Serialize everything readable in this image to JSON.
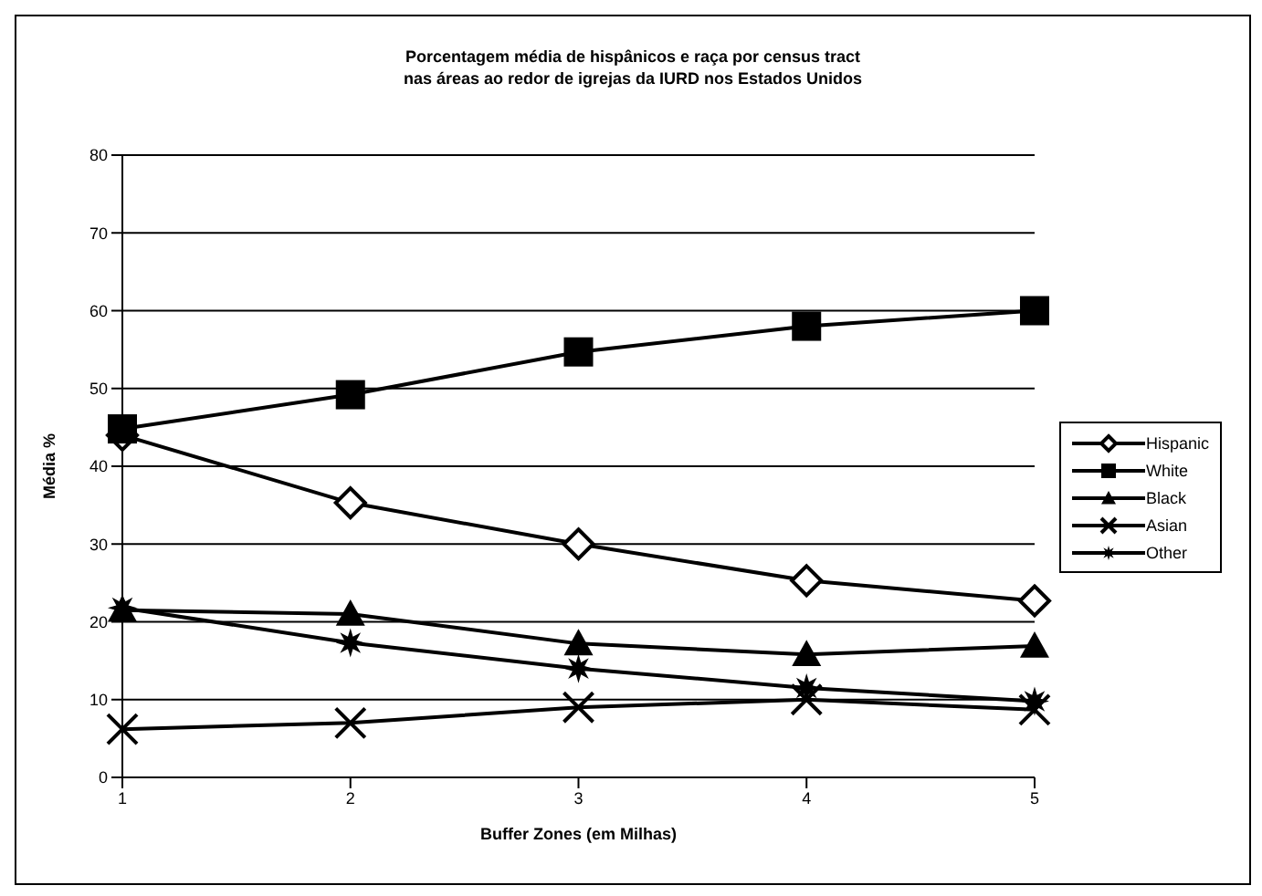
{
  "chart_data": {
    "type": "line",
    "title": "Porcentagem média de hispânicos e raça por census tract\nnas áreas ao redor de igrejas da IURD nos Estados Unidos",
    "xlabel": "Buffer Zones (em Milhas)",
    "ylabel": "Média %",
    "categories": [
      "1",
      "2",
      "3",
      "4",
      "5"
    ],
    "series": [
      {
        "name": "Hispanic",
        "color": "#000000",
        "marker": "diamond",
        "values": [
          44,
          35.3,
          30,
          25.3,
          22.7
        ]
      },
      {
        "name": "White",
        "color": "#000000",
        "marker": "square",
        "values": [
          44.8,
          49.2,
          54.7,
          58,
          60
        ]
      },
      {
        "name": "Black",
        "color": "#000000",
        "marker": "triangle",
        "values": [
          21.5,
          21,
          17.2,
          15.8,
          16.9
        ]
      },
      {
        "name": "Asian",
        "color": "#000000",
        "marker": "cross",
        "values": [
          6.2,
          7,
          9,
          10,
          8.7
        ]
      },
      {
        "name": "Other",
        "color": "#000000",
        "marker": "star",
        "values": [
          21.8,
          17.3,
          14,
          11.5,
          9.8
        ]
      }
    ],
    "ylim": [
      0,
      80
    ],
    "yticks": [
      0,
      10,
      20,
      30,
      40,
      50,
      60,
      70,
      80
    ],
    "grid": "y",
    "legend": "right",
    "line_style": "solid"
  }
}
